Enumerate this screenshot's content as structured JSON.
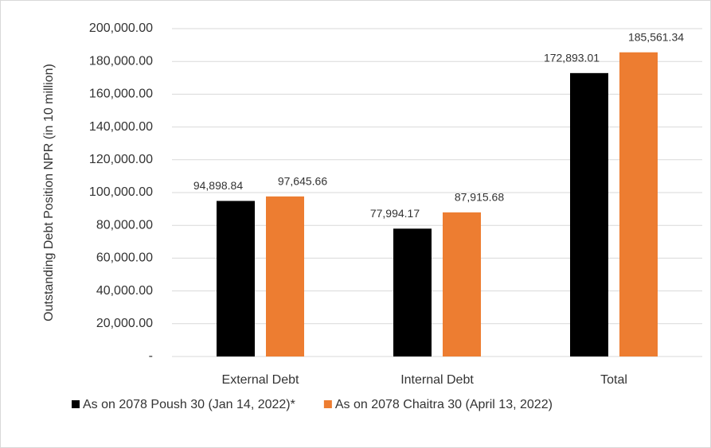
{
  "chart_data": {
    "type": "bar",
    "y_label": "Outstanding Debt Position NPR (in 10 million)",
    "categories": [
      "External Debt",
      "Internal Debt",
      "Total"
    ],
    "series": [
      {
        "name": "As on 2078 Poush 30 (Jan 14, 2022)*",
        "color": "#000000",
        "values": [
          94898.84,
          77994.17,
          172893.01
        ],
        "value_labels": [
          "94,898.84",
          "77,994.17",
          "172,893.01"
        ]
      },
      {
        "name": "As on 2078 Chaitra 30 (April 13, 2022)",
        "color": "#ed7d31",
        "values": [
          97645.66,
          87915.68,
          185561.34
        ],
        "value_labels": [
          "97,645.66",
          "87,915.68",
          "185,561.34"
        ]
      }
    ],
    "ylim": [
      0,
      200000
    ],
    "yticks": [
      {
        "value": 0,
        "label": "-"
      },
      {
        "value": 20000,
        "label": "20,000.00"
      },
      {
        "value": 40000,
        "label": "40,000.00"
      },
      {
        "value": 60000,
        "label": "60,000.00"
      },
      {
        "value": 80000,
        "label": "80,000.00"
      },
      {
        "value": 100000,
        "label": "100,000.00"
      },
      {
        "value": 120000,
        "label": "120,000.00"
      },
      {
        "value": 140000,
        "label": "140,000.00"
      },
      {
        "value": 160000,
        "label": "160,000.00"
      },
      {
        "value": 180000,
        "label": "180,000.00"
      },
      {
        "value": 200000,
        "label": "200,000.00"
      }
    ],
    "legend": "bottom"
  }
}
